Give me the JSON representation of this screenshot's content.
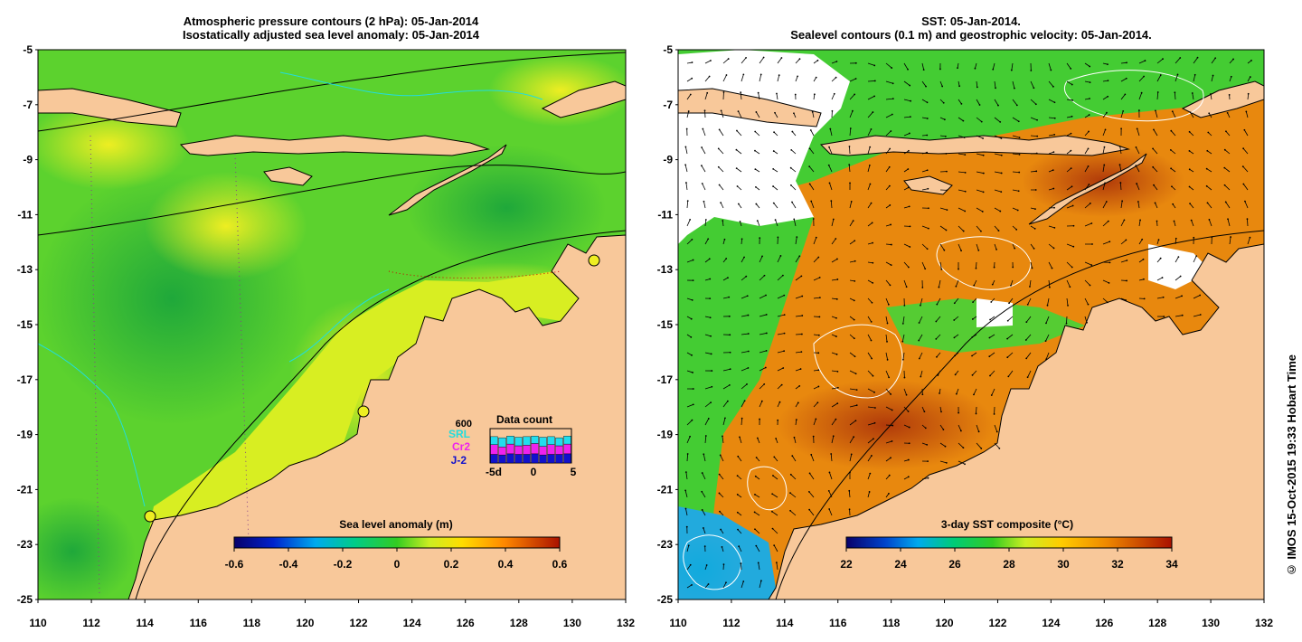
{
  "left_panel": {
    "title_line1": "Atmospheric pressure contours (2 hPa): 05-Jan-2014",
    "title_line2": "Isostatically adjusted sea level anomaly: 05-Jan-2014",
    "colorbar": {
      "label": "Sea level anomaly (m)",
      "ticks": [
        "-0.6",
        "-0.4",
        "-0.2",
        "0",
        "0.2",
        "0.4",
        "0.6"
      ],
      "range": [
        -0.6,
        0.6
      ]
    },
    "data_count": {
      "title": "Data count",
      "max_label": "600",
      "series": [
        {
          "name": "SRL",
          "color": "#22ddee"
        },
        {
          "name": "Cr2",
          "color": "#ee22ee"
        },
        {
          "name": "J-2",
          "color": "#1111cc"
        }
      ],
      "x_ticks": [
        "-5d",
        "0",
        "5"
      ],
      "values": {
        "SRL": [
          460,
          440,
          470,
          450,
          460,
          470,
          450,
          460,
          440,
          470
        ],
        "Cr2": [
          320,
          280,
          330,
          300,
          310,
          340,
          290,
          320,
          300,
          330
        ],
        "J-2": [
          150,
          140,
          160,
          150,
          150,
          160,
          140,
          150,
          150,
          160
        ]
      }
    }
  },
  "right_panel": {
    "title_line1": "SST: 05-Jan-2014.",
    "title_line2": "Sealevel contours (0.1 m) and geostrophic velocity: 05-Jan-2014.",
    "colorbar": {
      "label": "3-day SST composite (°C)",
      "ticks": [
        "22",
        "24",
        "26",
        "28",
        "30",
        "32",
        "34"
      ],
      "range": [
        22,
        34
      ]
    }
  },
  "axes": {
    "lat_ticks": [
      "-5",
      "-7",
      "-9",
      "-11",
      "-13",
      "-15",
      "-17",
      "-19",
      "-21",
      "-23",
      "-25"
    ],
    "lon_ticks": [
      "110",
      "112",
      "114",
      "116",
      "118",
      "120",
      "122",
      "124",
      "126",
      "128",
      "130",
      "132"
    ],
    "lat_range": [
      -25,
      -5
    ],
    "lon_range": [
      110,
      132
    ]
  },
  "credit": "© IMOS 15-Oct-2015 19:33 Hobart Time",
  "colors": {
    "land": "#f8c89a",
    "ocean_green": "#33cc33",
    "ocean_orange": "#e07a10"
  }
}
